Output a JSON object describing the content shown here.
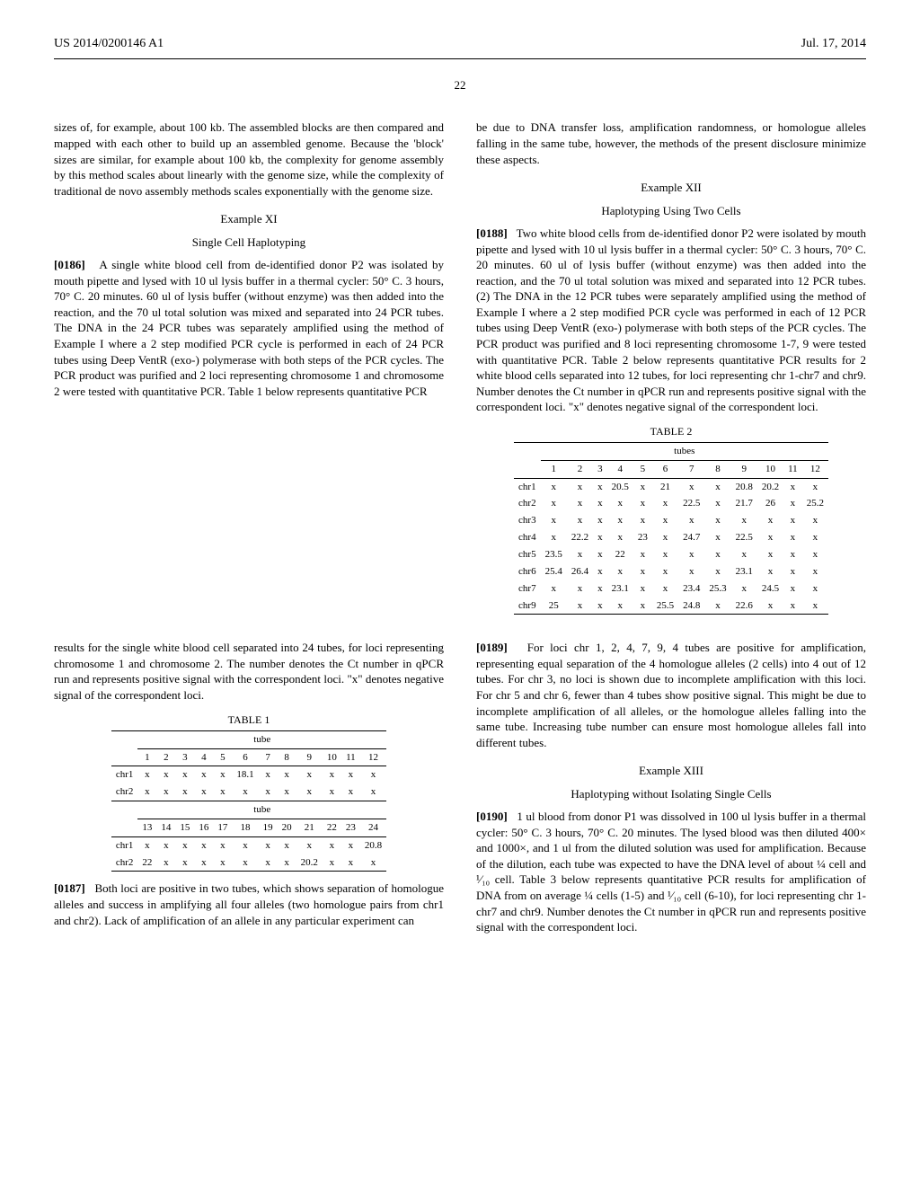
{
  "header": {
    "patent_number": "US 2014/0200146 A1",
    "date": "Jul. 17, 2014"
  },
  "page_number": "22",
  "left_col": {
    "p1": "sizes of, for example, about 100 kb. The assembled blocks are then compared and mapped with each other to build up an assembled genome. Because the 'block' sizes are similar, for example about 100 kb, the complexity for genome assembly by this method scales about linearly with the genome size, while the complexity of traditional de novo assembly methods scales exponentially with the genome size.",
    "example_xi": "Example XI",
    "sub_xi": "Single Cell Haplotyping",
    "p0186_num": "[0186]",
    "p0186": "A single white blood cell from de-identified donor P2 was isolated by mouth pipette and lysed with 10 ul lysis buffer in a thermal cycler: 50° C. 3 hours, 70° C. 20 minutes. 60 ul of lysis buffer (without enzyme) was then added into the reaction, and the 70 ul total solution was mixed and separated into 24 PCR tubes. The DNA in the 24 PCR tubes was separately amplified using the method of Example I where a 2 step modified PCR cycle is performed in each of 24 PCR tubes using Deep VentR (exo-) polymerase with both steps of the PCR cycles. The PCR product was purified and 2 loci representing chromosome 1 and chromosome 2 were tested with quantitative PCR. Table 1 below represents quantitative PCR",
    "after_t2_p": "results for the single white blood cell separated into 24 tubes, for loci representing chromosome 1 and chromosome 2. The number denotes the Ct number in qPCR run and represents positive signal with the correspondent loci. \"x\" denotes negative signal of the correspondent loci.",
    "table1_caption": "TABLE 1",
    "p0187_num": "[0187]",
    "p0187": "Both loci are positive in two tubes, which shows separation of homologue alleles and success in amplifying all four alleles (two homologue pairs from chr1 and chr2). Lack of amplification of an allele in any particular experiment can"
  },
  "right_col": {
    "p_top": "be due to DNA transfer loss, amplification randomness, or homologue alleles falling in the same tube, however, the methods of the present disclosure minimize these aspects.",
    "example_xii": "Example XII",
    "sub_xii": "Haplotyping Using Two Cells",
    "p0188_num": "[0188]",
    "p0188": "Two white blood cells from de-identified donor P2 were isolated by mouth pipette and lysed with 10 ul lysis buffer in a thermal cycler: 50° C. 3 hours, 70° C. 20 minutes. 60 ul of lysis buffer (without enzyme) was then added into the reaction, and the 70 ul total solution was mixed and separated into 12 PCR tubes. (2) The DNA in the 12 PCR tubes were separately amplified using the method of Example I where a 2 step modified PCR cycle was performed in each of 12 PCR tubes using Deep VentR (exo-) polymerase with both steps of the PCR cycles. The PCR product was purified and 8 loci representing chromosome 1-7, 9 were tested with quantitative PCR. Table 2 below represents quantitative PCR results for 2 white blood cells separated into 12 tubes, for loci representing chr 1-chr7 and chr9. Number denotes the Ct number in qPCR run and represents positive signal with the correspondent loci. \"x\" denotes negative signal of the correspondent loci.",
    "table2_caption": "TABLE 2",
    "p0189_num": "[0189]",
    "p0189": "For loci chr 1, 2, 4, 7, 9, 4 tubes are positive for amplification, representing equal separation of the 4 homologue alleles (2 cells) into 4 out of 12 tubes. For chr 3, no loci is shown due to incomplete amplification with this loci. For chr 5 and chr 6, fewer than 4 tubes show positive signal. This might be due to incomplete amplification of all alleles, or the homologue alleles falling into the same tube. Increasing tube number can ensure most homologue alleles fall into different tubes.",
    "example_xiii": "Example XIII",
    "sub_xiii": "Haplotyping without Isolating Single Cells",
    "p0190_num": "[0190]",
    "p0190": "1 ul blood from donor P1 was dissolved in 100 ul lysis buffer in a thermal cycler: 50° C. 3 hours, 70° C. 20 minutes. The lysed blood was then diluted 400× and 1000×, and 1 ul from the diluted solution was used for amplification. Because of the dilution, each tube was expected to have the DNA level of about ¼ cell and ¹⁄₁₀ cell. Table 3 below represents quantitative PCR results for amplification of DNA from on average ¼ cells (1-5) and ¹⁄₁₀ cell (6-10), for loci representing chr 1-chr7 and chr9. Number denotes the Ct number in qPCR run and represents positive signal with the correspondent loci."
  },
  "table1": {
    "group_header": "tube",
    "rows_a": {
      "headers": [
        "",
        "1",
        "2",
        "3",
        "4",
        "5",
        "6",
        "7",
        "8",
        "9",
        "10",
        "11",
        "12"
      ],
      "chr1": [
        "chr1",
        "x",
        "x",
        "x",
        "x",
        "x",
        "18.1",
        "x",
        "x",
        "x",
        "x",
        "x",
        "x"
      ],
      "chr2": [
        "chr2",
        "x",
        "x",
        "x",
        "x",
        "x",
        "x",
        "x",
        "x",
        "x",
        "x",
        "x",
        "x"
      ]
    },
    "rows_b": {
      "headers": [
        "",
        "13",
        "14",
        "15",
        "16",
        "17",
        "18",
        "19",
        "20",
        "21",
        "22",
        "23",
        "24"
      ],
      "chr1": [
        "chr1",
        "x",
        "x",
        "x",
        "x",
        "x",
        "x",
        "x",
        "x",
        "x",
        "x",
        "x",
        "20.8"
      ],
      "chr2": [
        "chr2",
        "22",
        "x",
        "x",
        "x",
        "x",
        "x",
        "x",
        "x",
        "20.2",
        "x",
        "x",
        "x"
      ]
    }
  },
  "table2": {
    "group_header": "tubes",
    "headers": [
      "",
      "1",
      "2",
      "3",
      "4",
      "5",
      "6",
      "7",
      "8",
      "9",
      "10",
      "11",
      "12"
    ],
    "rows": [
      [
        "chr1",
        "x",
        "x",
        "x",
        "20.5",
        "x",
        "21",
        "x",
        "x",
        "20.8",
        "20.2",
        "x",
        "x"
      ],
      [
        "chr2",
        "x",
        "x",
        "x",
        "x",
        "x",
        "x",
        "22.5",
        "x",
        "21.7",
        "26",
        "x",
        "25.2"
      ],
      [
        "chr3",
        "x",
        "x",
        "x",
        "x",
        "x",
        "x",
        "x",
        "x",
        "x",
        "x",
        "x",
        "x"
      ],
      [
        "chr4",
        "x",
        "22.2",
        "x",
        "x",
        "23",
        "x",
        "24.7",
        "x",
        "22.5",
        "x",
        "x",
        "x"
      ],
      [
        "chr5",
        "23.5",
        "x",
        "x",
        "22",
        "x",
        "x",
        "x",
        "x",
        "x",
        "x",
        "x",
        "x"
      ],
      [
        "chr6",
        "25.4",
        "26.4",
        "x",
        "x",
        "x",
        "x",
        "x",
        "x",
        "23.1",
        "x",
        "x",
        "x"
      ],
      [
        "chr7",
        "x",
        "x",
        "x",
        "23.1",
        "x",
        "x",
        "23.4",
        "25.3",
        "x",
        "24.5",
        "x",
        "x"
      ],
      [
        "chr9",
        "25",
        "x",
        "x",
        "x",
        "x",
        "25.5",
        "24.8",
        "x",
        "22.6",
        "x",
        "x",
        "x"
      ]
    ]
  }
}
